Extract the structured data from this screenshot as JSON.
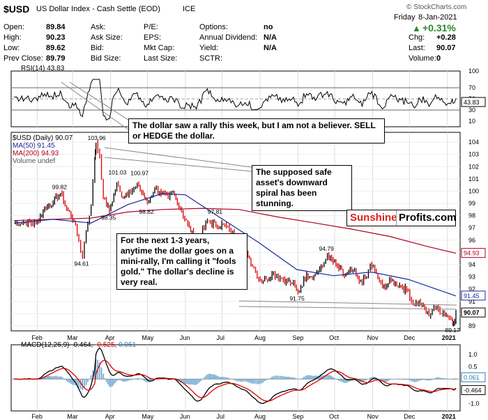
{
  "header": {
    "symbol": "$USD",
    "name": "US Dollar Index - Cash Settle (EOD)",
    "exchange": "ICE",
    "copyright": "© StockCharts.com",
    "day": "Friday",
    "date": "8-Jan-2021",
    "change_pct": "+0.31%",
    "up_arrow": "▲"
  },
  "quote_table": {
    "col1": [
      [
        "Open:",
        "89.84"
      ],
      [
        "High:",
        "90.23"
      ],
      [
        "Low:",
        "89.62"
      ],
      [
        "Prev Close:",
        "89.79"
      ]
    ],
    "col2": [
      "Ask:",
      "Ask Size:",
      "Bid:",
      "Bid Size:"
    ],
    "col3": [
      [
        "P/E:",
        ""
      ],
      [
        "EPS:",
        ""
      ],
      [
        "Mkt Cap:",
        ""
      ],
      [
        "Last Size:",
        ""
      ]
    ],
    "col4": [
      [
        "Options:",
        "no"
      ],
      [
        "Annual Dividend:",
        "N/A"
      ],
      [
        "Yield:",
        "N/A"
      ],
      [
        "SCTR:",
        ""
      ]
    ],
    "col5": [
      [
        "Chg:",
        "+0.28"
      ],
      [
        "Last:",
        "90.07"
      ],
      [
        "Volume:",
        "0"
      ]
    ]
  },
  "rsi": {
    "label": "RSI(14) 43.83",
    "last": "43.83",
    "ticks": [
      "100",
      "70",
      "50",
      "30",
      "10"
    ],
    "colors": {
      "line": "#000000",
      "overbought": "#4a8a4a",
      "oversold": "#a05050"
    }
  },
  "price_legend": [
    "$USD (Daily) 90.07",
    "MA(50) 91.45",
    "MA(200) 94.93",
    "Volume undef"
  ],
  "price_axis": {
    "ticks": [
      "104",
      "103",
      "102",
      "101",
      "100",
      "99",
      "98",
      "97",
      "96",
      "95",
      "94",
      "93",
      "92",
      "91",
      "90",
      "89"
    ],
    "last_labels": {
      "ma200": "94.93",
      "ma50": "91.45",
      "close": "90.07"
    }
  },
  "annotations": {
    "peak_labels": [
      "103.96",
      "99.82",
      "94.61",
      "98.35",
      "101.03",
      "100.97",
      "98.82",
      "97.81",
      "95.71",
      "94.79",
      "91.75",
      "89.17"
    ],
    "callout1": "The dollar saw a rally this week, but I am not a believer. SELL or HEDGE the dollar.",
    "callout2": "The supposed safe asset's downward spiral has been stunning.",
    "callout3": "For the next 1-3 years, anytime the dollar goes on a mini-rally, I'm calling it \"fools gold.\" The dollar's decline is very real.",
    "logo_a": "Sunshine",
    "logo_b": "Profits.com"
  },
  "x_months": [
    "Feb",
    "Mar",
    "Apr",
    "May",
    "Jun",
    "Jul",
    "Aug",
    "Sep",
    "Oct",
    "Nov",
    "Dec",
    "2021"
  ],
  "macd": {
    "label_prefix": "MACD(12,26,9)",
    "v1": "-0.464",
    "v2": "-0.525",
    "v3": "0.061",
    "ticks": [
      "1.0",
      "0.5",
      "0.0",
      "-0.5",
      "-1.0"
    ],
    "last_labels": {
      "hist": "0.061",
      "macd": "-0.464"
    }
  },
  "chart_data": {
    "type": "line",
    "title": "$USD (Daily)",
    "x_start": "2020-01-13",
    "x_end": "2021-01-08",
    "series": [
      {
        "name": "$USD",
        "points": [
          [
            "2020-01-13",
            97.4
          ],
          [
            "2020-01-22",
            97.5
          ],
          [
            "2020-01-31",
            97.3
          ],
          [
            "2020-02-07",
            98.6
          ],
          [
            "2020-02-14",
            99.1
          ],
          [
            "2020-02-20",
            99.82
          ],
          [
            "2020-02-25",
            98.6
          ],
          [
            "2020-03-02",
            97.6
          ],
          [
            "2020-03-06",
            95.9
          ],
          [
            "2020-03-09",
            94.61
          ],
          [
            "2020-03-12",
            96.8
          ],
          [
            "2020-03-16",
            98.9
          ],
          [
            "2020-03-19",
            102.6
          ],
          [
            "2020-03-20",
            103.96
          ],
          [
            "2020-03-23",
            102.8
          ],
          [
            "2020-03-26",
            99.5
          ],
          [
            "2020-03-31",
            98.35
          ],
          [
            "2020-04-06",
            100.6
          ],
          [
            "2020-04-10",
            99.5
          ],
          [
            "2020-04-16",
            100.0
          ],
          [
            "2020-04-24",
            100.4
          ],
          [
            "2020-05-01",
            99.0
          ],
          [
            "2020-05-07",
            100.2
          ],
          [
            "2020-05-11",
            100.0
          ],
          [
            "2020-05-18",
            99.4
          ],
          [
            "2020-05-22",
            99.9
          ],
          [
            "2020-05-29",
            98.3
          ],
          [
            "2020-06-03",
            97.3
          ],
          [
            "2020-06-10",
            95.71
          ],
          [
            "2020-06-19",
            97.6
          ],
          [
            "2020-06-26",
            97.2
          ],
          [
            "2020-07-02",
            97.3
          ],
          [
            "2020-07-07",
            96.8
          ],
          [
            "2020-07-15",
            96.0
          ],
          [
            "2020-07-21",
            95.1
          ],
          [
            "2020-07-27",
            93.7
          ],
          [
            "2020-07-31",
            92.8
          ],
          [
            "2020-08-06",
            92.8
          ],
          [
            "2020-08-12",
            93.3
          ],
          [
            "2020-08-20",
            92.8
          ],
          [
            "2020-08-27",
            92.5
          ],
          [
            "2020-09-01",
            91.75
          ],
          [
            "2020-09-08",
            93.2
          ],
          [
            "2020-09-14",
            93.1
          ],
          [
            "2020-09-21",
            93.9
          ],
          [
            "2020-09-25",
            94.79
          ],
          [
            "2020-10-02",
            93.9
          ],
          [
            "2020-10-09",
            93.1
          ],
          [
            "2020-10-16",
            93.6
          ],
          [
            "2020-10-21",
            92.6
          ],
          [
            "2020-10-27",
            93.0
          ],
          [
            "2020-10-30",
            94.0
          ],
          [
            "2020-11-04",
            93.3
          ],
          [
            "2020-11-09",
            92.1
          ],
          [
            "2020-11-16",
            92.7
          ],
          [
            "2020-11-23",
            92.3
          ],
          [
            "2020-11-30",
            91.8
          ],
          [
            "2020-12-04",
            90.8
          ],
          [
            "2020-12-10",
            90.9
          ],
          [
            "2020-12-17",
            89.8
          ],
          [
            "2020-12-21",
            90.6
          ],
          [
            "2020-12-31",
            89.9
          ],
          [
            "2021-01-05",
            89.5
          ],
          [
            "2021-01-06",
            89.17
          ],
          [
            "2021-01-08",
            90.07
          ]
        ]
      },
      {
        "name": "MA(50)",
        "points": [
          [
            "2020-01-13",
            97.4
          ],
          [
            "2020-02-14",
            97.7
          ],
          [
            "2020-03-16",
            97.4
          ],
          [
            "2020-04-15",
            98.9
          ],
          [
            "2020-05-13",
            99.8
          ],
          [
            "2020-06-01",
            99.7
          ],
          [
            "2020-06-30",
            97.8
          ],
          [
            "2020-07-31",
            95.8
          ],
          [
            "2020-08-31",
            93.6
          ],
          [
            "2020-09-30",
            93.1
          ],
          [
            "2020-10-31",
            93.4
          ],
          [
            "2020-11-30",
            92.8
          ],
          [
            "2021-01-08",
            91.45
          ]
        ]
      },
      {
        "name": "MA(200)",
        "points": [
          [
            "2020-01-13",
            97.6
          ],
          [
            "2020-02-14",
            97.7
          ],
          [
            "2020-03-16",
            97.8
          ],
          [
            "2020-04-15",
            98.3
          ],
          [
            "2020-05-13",
            98.5
          ],
          [
            "2020-06-15",
            98.6
          ],
          [
            "2020-07-15",
            98.5
          ],
          [
            "2020-08-15",
            97.9
          ],
          [
            "2020-09-15",
            97.4
          ],
          [
            "2020-10-15",
            96.9
          ],
          [
            "2020-11-15",
            96.3
          ],
          [
            "2020-12-15",
            95.5
          ],
          [
            "2021-01-08",
            94.93
          ]
        ]
      }
    ],
    "ylim": [
      88.6,
      104.8
    ],
    "rsi_ylim": [
      0,
      100
    ],
    "macd_ylim": [
      -1.3,
      1.4
    ]
  }
}
